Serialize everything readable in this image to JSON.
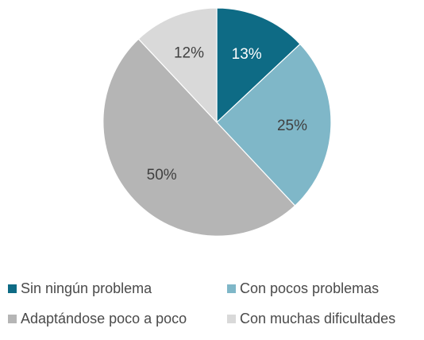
{
  "chart_data": {
    "type": "pie",
    "title": "",
    "start_angle_deg": 0,
    "direction": "clockwise",
    "legend_position": "bottom",
    "slices": [
      {
        "label": "Sin ningún problema",
        "value": 13,
        "value_label": "13%",
        "color": "#0e6b85",
        "label_color": "#ffffff"
      },
      {
        "label": "Con pocos problemas",
        "value": 25,
        "value_label": "25%",
        "color": "#7fb7c8",
        "label_color": "#404040"
      },
      {
        "label": "Adaptándose poco a poco",
        "value": 50,
        "value_label": "50%",
        "color": "#b5b5b5",
        "label_color": "#404040"
      },
      {
        "label": "Con muchas dificultades",
        "value": 12,
        "value_label": "12%",
        "color": "#d9d9d9",
        "label_color": "#404040"
      }
    ]
  }
}
